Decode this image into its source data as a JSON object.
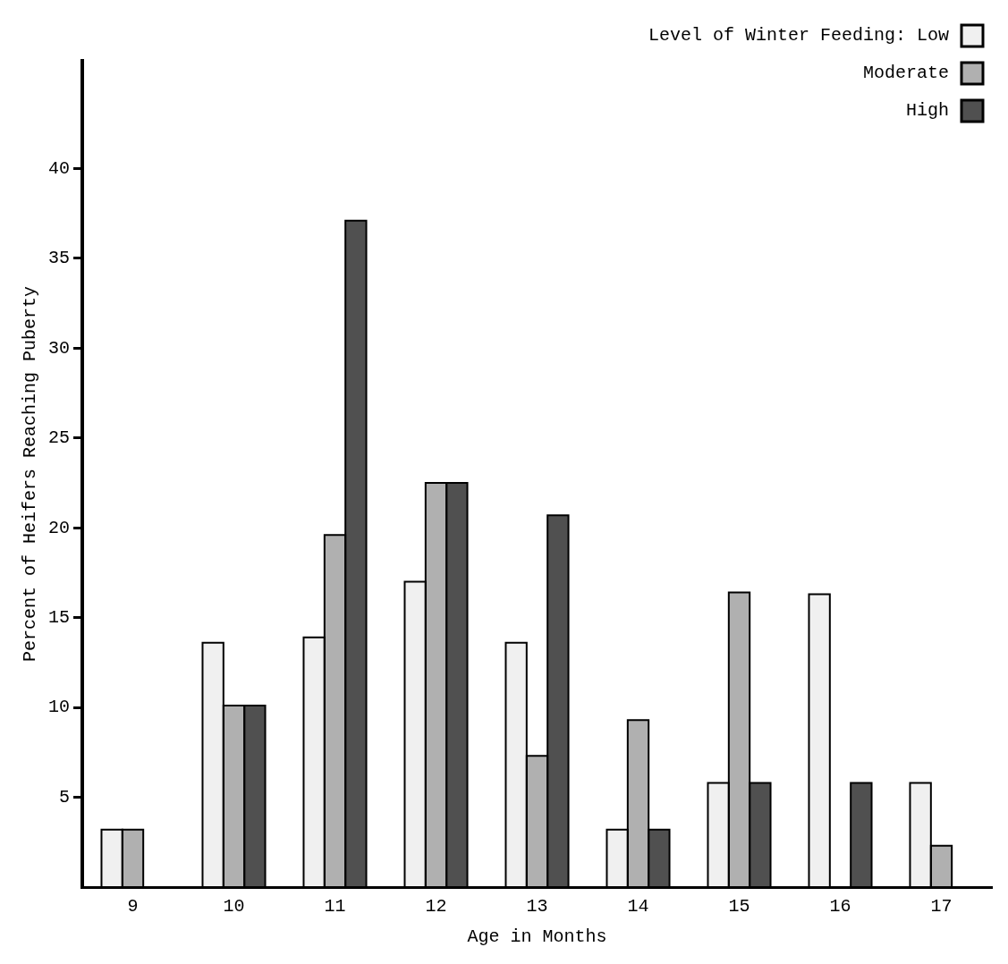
{
  "chart_data": {
    "type": "bar",
    "xlabel": "Age in Months",
    "ylabel": "Percent of Heifers Reaching Puberty",
    "legend_title": "Level of Winter Feeding:",
    "categories": [
      "9",
      "10",
      "11",
      "12",
      "13",
      "14",
      "15",
      "16",
      "17"
    ],
    "series": [
      {
        "name": "Low",
        "color": "#f0f0f0",
        "values": [
          3.2,
          13.6,
          13.9,
          17.0,
          13.6,
          3.2,
          5.8,
          16.3,
          5.8
        ]
      },
      {
        "name": "Moderate",
        "color": "#b0b0b0",
        "values": [
          3.2,
          10.1,
          19.6,
          22.5,
          7.3,
          9.3,
          16.4,
          0,
          2.3
        ]
      },
      {
        "name": "High",
        "color": "#505050",
        "values": [
          0,
          10.1,
          37.1,
          22.5,
          20.7,
          3.2,
          5.8,
          5.8,
          0
        ]
      }
    ],
    "ylim": [
      0,
      46
    ],
    "yticks": [
      5,
      10,
      15,
      20,
      25,
      30,
      35,
      40
    ],
    "grid": false,
    "legend": "top right"
  }
}
